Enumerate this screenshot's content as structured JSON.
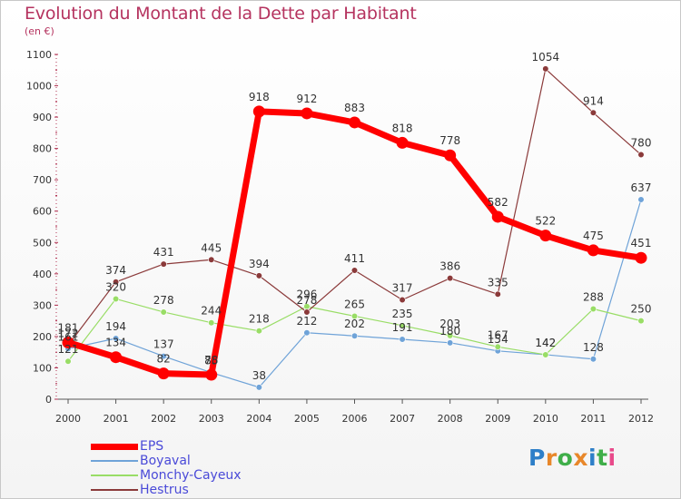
{
  "title": "Evolution du Montant de la Dette par Habitant",
  "unit": "(en €)",
  "logo": "Proxiti",
  "chart_data": {
    "type": "line",
    "title": "Evolution du Montant de la Dette par Habitant",
    "subtitle": "(en €)",
    "xlabel": "",
    "ylabel": "",
    "ylim": [
      0,
      1100
    ],
    "yticks": [
      0,
      100,
      200,
      300,
      400,
      500,
      600,
      700,
      800,
      900,
      1000,
      1100
    ],
    "grid": false,
    "legend_position": "bottom-left",
    "x": [
      "2000",
      "2001",
      "2002",
      "2003",
      "2004",
      "2005",
      "2006",
      "2007",
      "2008",
      "2009",
      "2010",
      "2011",
      "2012"
    ],
    "series": [
      {
        "name": "EPS",
        "color": "#ff0000",
        "values": [
          181,
          134,
          82,
          78,
          918,
          912,
          883,
          818,
          778,
          582,
          522,
          475,
          451
        ],
        "labels": [
          "181",
          "134",
          "82",
          "78",
          "918",
          "912",
          "883",
          "818",
          "778",
          "582",
          "522",
          "475",
          "451"
        ]
      },
      {
        "name": "Boyaval",
        "color": "#6fa3d8",
        "values": [
          161,
          194,
          137,
          85,
          38,
          212,
          202,
          191,
          180,
          154,
          142,
          128,
          637
        ],
        "labels": [
          "161",
          "194",
          "137",
          "85",
          "38",
          "212",
          "202",
          "191",
          "180",
          "154",
          "142",
          "128",
          "637"
        ]
      },
      {
        "name": "Monchy-Cayeux",
        "color": "#99dd66",
        "values": [
          121,
          320,
          278,
          244,
          218,
          296,
          265,
          235,
          203,
          167,
          142,
          288,
          250
        ],
        "labels": [
          "121",
          "320",
          "278",
          "244",
          "218",
          "296",
          "265",
          "235",
          "203",
          "167",
          "142",
          "288",
          "250"
        ]
      },
      {
        "name": "Hestrus",
        "color": "#8b3a3a",
        "values": [
          172,
          374,
          431,
          445,
          394,
          278,
          411,
          317,
          386,
          335,
          1054,
          914,
          780
        ],
        "labels": [
          "172",
          "374",
          "431",
          "445",
          "394",
          "278",
          "411",
          "317",
          "386",
          "335",
          "1054",
          "914",
          "780"
        ]
      }
    ]
  }
}
